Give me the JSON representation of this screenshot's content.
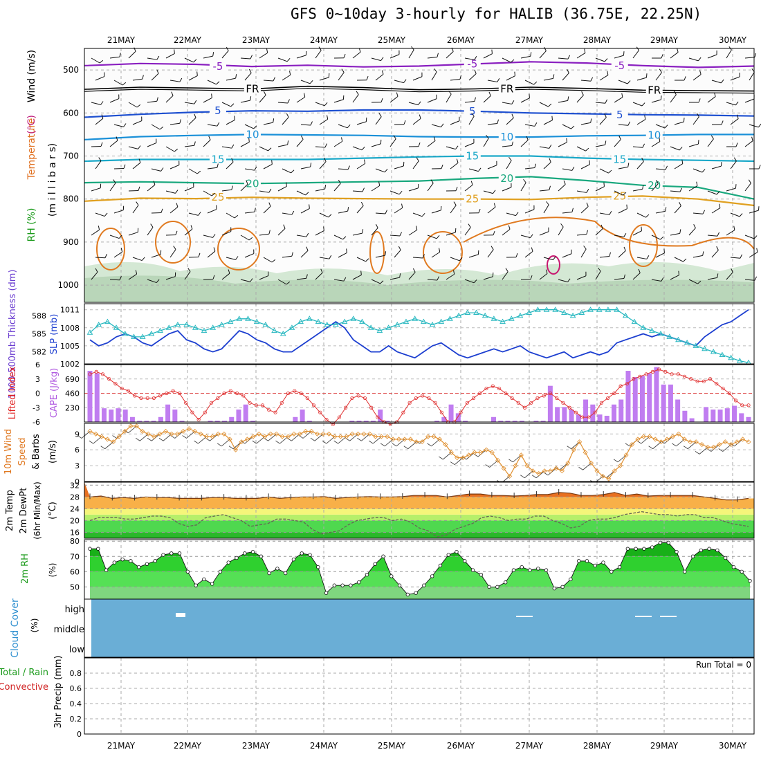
{
  "title": "GFS 0~10day 3-hourly for HALIB (36.75E, 22.25N)",
  "chart_data": {
    "dates": [
      "21MAY",
      "22MAY",
      "23MAY",
      "24MAY",
      "25MAY",
      "26MAY",
      "27MAY",
      "28MAY",
      "29MAY",
      "30MAY"
    ],
    "panel1": {
      "ylabel_parts": [
        {
          "text": "RH (%)",
          "color": "#1a9a1a"
        },
        {
          "text": "Temperature",
          "color": "#e07020"
        },
        {
          "text": "(°C)",
          "color": "#c02080"
        },
        {
          "text": "Wind (m/s)",
          "color": "#000000"
        }
      ],
      "ylabel2": "(m i l l i b a r s)",
      "pressure_ticks": [
        500,
        600,
        700,
        800,
        900,
        1000
      ],
      "isotherms": [
        {
          "label": "-5",
          "color": "#8a1fc0",
          "p": [
            490,
            485,
            487,
            492,
            489,
            493,
            491,
            486,
            481,
            484,
            490,
            494,
            491
          ]
        },
        {
          "label": "FR",
          "color": "#000000",
          "p": [
            545,
            540,
            542,
            544,
            538,
            541,
            546,
            544,
            540,
            543,
            547,
            548,
            549
          ]
        },
        {
          "label": "5",
          "color": "#1d4fd0",
          "p": [
            610,
            603,
            598,
            595,
            596,
            593,
            593,
            596,
            600,
            602,
            604,
            605,
            607
          ]
        },
        {
          "label": "10",
          "color": "#1a90d8",
          "p": [
            662,
            655,
            652,
            650,
            651,
            652,
            655,
            656,
            656,
            653,
            652,
            650,
            650
          ]
        },
        {
          "label": "15",
          "color": "#1aa8c8",
          "p": [
            712,
            708,
            708,
            708,
            708,
            705,
            702,
            700,
            700,
            705,
            708,
            710,
            712
          ]
        },
        {
          "label": "20",
          "color": "#19a87e",
          "p": [
            762,
            760,
            762,
            764,
            762,
            760,
            758,
            752,
            748,
            757,
            768,
            773,
            800
          ]
        },
        {
          "label": "25",
          "color": "#e0a020",
          "p": [
            805,
            798,
            799,
            796,
            798,
            799,
            800,
            800,
            801,
            796,
            793,
            800,
            815
          ]
        }
      ]
    },
    "panel2": {
      "ylabel_left": "1000-500mb Thickness (dm)",
      "ylabel_right": "SLP (mb)",
      "left_ticks": [
        582,
        585,
        588
      ],
      "right_ticks": [
        1002,
        1005,
        1008,
        1011
      ],
      "right_ticks_text": [
        "1002",
        "1005",
        "1008",
        "1011"
      ],
      "slp_mb": [
        1006,
        1005,
        1005.5,
        1006.5,
        1007,
        1006.5,
        1005.5,
        1005,
        1006,
        1007,
        1007.5,
        1006,
        1005.5,
        1004.5,
        1004,
        1004.5,
        1006,
        1007.5,
        1007,
        1006,
        1005.5,
        1004.5,
        1004,
        1004,
        1005,
        1006,
        1007,
        1008,
        1009,
        1008,
        1006,
        1005,
        1004,
        1004,
        1005,
        1004,
        1003.5,
        1003,
        1004,
        1005,
        1005.5,
        1004.5,
        1003.5,
        1003,
        1003.5,
        1004,
        1004.5,
        1004,
        1004.5,
        1005,
        1004,
        1003.5,
        1003,
        1003.5,
        1004,
        1003,
        1003.5,
        1004,
        1003.5,
        1004,
        1005.5,
        1006,
        1006.5,
        1007,
        1006.5,
        1007,
        1006.5,
        1006,
        1005.5,
        1005,
        1006.5,
        1007.5,
        1008.5,
        1009,
        1010,
        1011
      ],
      "thickness_dm": [
        585.2,
        586.5,
        587.0,
        586.0,
        585.0,
        584.5,
        584.5,
        585.0,
        585.5,
        586.0,
        586.5,
        586.5,
        586.0,
        585.5,
        586.0,
        586.5,
        587.0,
        587.5,
        587.5,
        587.0,
        586.5,
        585.5,
        585.0,
        586.0,
        587.0,
        587.5,
        587.0,
        586.5,
        586.5,
        587.0,
        587.5,
        587.0,
        586.0,
        585.5,
        586.0,
        586.5,
        587.0,
        587.5,
        587.0,
        586.5,
        587.0,
        587.5,
        588.0,
        588.5,
        588.5,
        588.0,
        587.5,
        587.0,
        587.5,
        588.0,
        588.5,
        589.0,
        589.0,
        589.0,
        588.5,
        588.0,
        588.5,
        589.0,
        589.0,
        589.0,
        589.0,
        588.0,
        587.0,
        586.0,
        585.5,
        585.0,
        584.5,
        584.0,
        583.5,
        583.0,
        582.5,
        582.0,
        581.5,
        581.0,
        580.5,
        580.2
      ]
    },
    "panel3": {
      "ylabel_left": "Lifted Index",
      "ylabel_right": "CAPE (J/kg)",
      "left_ticks_text": [
        "6",
        "3",
        "0",
        "-3",
        "-6"
      ],
      "right_ticks_text": [
        "230",
        "460",
        "690"
      ],
      "cape_bars": [
        820,
        780,
        220,
        200,
        220,
        200,
        80,
        20,
        20,
        20,
        80,
        280,
        200,
        20,
        0,
        0,
        0,
        20,
        20,
        20,
        80,
        200,
        280,
        20,
        0,
        0,
        0,
        0,
        0,
        80,
        200,
        20,
        0,
        0,
        0,
        0,
        0,
        20,
        20,
        20,
        20,
        200,
        20,
        0,
        0,
        0,
        0,
        0,
        0,
        20,
        80,
        280,
        140,
        20,
        0,
        0,
        0,
        80,
        20,
        20,
        20,
        20,
        0,
        20,
        20,
        580,
        240,
        240,
        200,
        120,
        360,
        280,
        120,
        100,
        280,
        360,
        820,
        720,
        740,
        780,
        880,
        600,
        600,
        360,
        180,
        60,
        0,
        240,
        200,
        200,
        220,
        260,
        140,
        80
      ],
      "lifted_index": [
        -4.0,
        -4.5,
        -4.0,
        -3.0,
        -2.0,
        -1.0,
        -0.5,
        0.5,
        1.0,
        1.0,
        1.0,
        0.5,
        0.0,
        -0.5,
        0.0,
        2.0,
        4.0,
        5.5,
        4.0,
        2.0,
        1.0,
        0.0,
        -0.5,
        0.0,
        0.5,
        2.0,
        2.5,
        2.5,
        3.5,
        4.0,
        2.0,
        0.0,
        -0.5,
        0.0,
        1.0,
        2.5,
        4.0,
        5.5,
        6.5,
        5.0,
        3.0,
        1.0,
        0.5,
        1.0,
        3.0,
        5.0,
        6.0,
        6.5,
        6.0,
        4.0,
        2.0,
        1.0,
        0.5,
        1.0,
        2.0,
        4.0,
        6.0,
        6.0,
        4.0,
        2.0,
        1.0,
        0.0,
        -1.0,
        -1.5,
        -1.0,
        0.0,
        1.0,
        2.0,
        3.0,
        2.0,
        1.0,
        0.5,
        0.0,
        1.0,
        2.0,
        3.0,
        4.0,
        5.0,
        5.0,
        4.0,
        2.0,
        1.0,
        0.0,
        -1.5,
        -2.0,
        -3.0,
        -3.5,
        -4.0,
        -4.5,
        -5.0,
        -4.5,
        -4.0,
        -4.0,
        -3.5,
        -3.0,
        -2.5,
        -2.5,
        -3.0,
        -2.0,
        -1.0,
        0.0,
        1.5,
        2.5,
        2.5
      ]
    },
    "panel4": {
      "ylabel": "10m Wind Speed & Barbs (m/s)",
      "yticks": [
        0,
        3,
        6,
        9
      ],
      "speed": [
        9.5,
        9.0,
        8.5,
        8.0,
        7.5,
        8.5,
        9.5,
        10.5,
        10.5,
        9.5,
        9.0,
        8.5,
        9.0,
        9.5,
        9.0,
        9.0,
        9.5,
        10.0,
        9.5,
        9.0,
        8.5,
        8.5,
        9.0,
        9.0,
        8.0,
        6.0,
        7.5,
        8.0,
        8.5,
        9.0,
        8.5,
        9.0,
        9.0,
        8.5,
        8.5,
        9.0,
        9.0,
        9.5,
        9.5,
        9.0,
        9.0,
        9.0,
        8.5,
        8.5,
        8.5,
        9.0,
        9.0,
        9.0,
        9.0,
        8.5,
        8.5,
        8.5,
        8.0,
        8.0,
        8.0,
        8.0,
        7.5,
        7.5,
        8.5,
        8.5,
        8.0,
        7.0,
        5.5,
        4.5,
        4.5,
        5.0,
        5.5,
        5.5,
        6.0,
        5.5,
        4.0,
        2.5,
        1.0,
        3.0,
        5.0,
        3.0,
        2.0,
        1.5,
        2.0,
        2.0,
        2.5,
        2.0,
        3.5,
        6.0,
        7.5,
        5.5,
        3.5,
        2.0,
        1.0,
        0.5,
        2.0,
        3.0,
        5.0,
        7.0,
        8.0,
        8.5,
        8.5,
        8.0,
        7.5,
        8.0,
        8.5,
        9.0,
        8.0,
        7.5,
        7.5,
        7.0,
        6.5,
        6.5,
        7.0,
        7.5,
        7.0,
        7.5,
        8.0,
        7.5
      ]
    },
    "panel5": {
      "ylabel": "2m Temp 2m DewPt (6hr Min/Max) (°C)",
      "yticks": [
        16,
        20,
        24,
        28,
        32
      ],
      "temp": [
        28,
        28.3,
        27.5,
        27.8,
        27.5,
        28,
        27.8,
        27.8,
        27.5,
        27.5,
        27.5,
        27.8,
        27.8,
        27.5,
        27.5,
        27.5,
        28,
        27.5,
        27.8,
        28,
        28,
        28.1,
        27.5,
        27.8,
        28,
        28.1,
        28,
        28,
        28.1,
        28.5,
        28.5,
        28.5,
        28,
        28.5,
        29,
        29,
        28.5,
        28.5,
        28.3,
        28.5,
        28.8,
        28.8,
        29.5,
        29.3,
        28.5,
        28.5,
        28.8,
        29.5,
        28.5,
        29,
        28.3,
        28.5,
        28.5,
        28.5,
        28.5,
        28,
        27.5,
        27,
        27,
        27.5
      ],
      "dewpt": [
        20,
        21,
        21,
        21,
        20.5,
        20.5,
        21,
        21.5,
        21.5,
        21,
        19,
        18,
        18.5,
        21,
        21.5,
        22,
        21,
        20,
        18,
        18.5,
        19,
        20.5,
        20.5,
        20,
        19.5,
        17,
        15.5,
        16,
        16.5,
        18.5,
        20,
        20.5,
        21,
        21,
        20,
        20.5,
        19.5,
        17.5,
        16.5,
        14.5,
        15,
        17,
        18,
        19,
        21,
        21.5,
        21,
        20,
        20.5,
        20.5,
        21.5,
        21.5,
        20,
        19,
        17.5,
        18,
        20,
        20.5,
        20.5,
        21,
        22,
        22.5,
        23,
        22.5,
        22,
        22,
        21.5,
        22,
        22,
        21,
        21,
        20,
        19,
        18.5,
        18
      ]
    },
    "panel6": {
      "ylabel": "2m RH",
      "units": "(%)",
      "yticks": [
        50,
        60,
        70,
        80
      ],
      "rh": [
        75,
        75,
        61,
        66,
        68,
        67,
        63,
        65,
        67,
        71,
        72,
        72,
        60,
        51,
        55,
        52,
        60,
        66,
        69,
        72,
        73,
        70,
        59,
        62,
        59,
        68,
        72,
        71,
        63,
        46,
        51,
        51,
        51,
        53,
        58,
        65,
        70,
        57,
        51,
        45,
        46,
        51,
        57,
        64,
        71,
        73,
        67,
        61,
        58,
        50,
        50,
        53,
        61,
        63,
        61,
        62,
        61,
        49,
        50,
        55,
        67,
        67,
        64,
        66,
        60,
        63,
        75,
        75,
        75,
        76,
        79,
        79,
        73,
        60,
        70,
        74,
        75,
        74,
        69,
        63,
        60,
        54
      ]
    },
    "panel7": {
      "ylabel": "Cloud Cover",
      "units": "(%)",
      "levels": [
        "high",
        "middle",
        "low"
      ]
    },
    "panel8": {
      "ylabel_parts": [
        {
          "text": "Total / Rain",
          "color": "#1a9a1a"
        },
        {
          "text": "Convective",
          "color": "#d02020"
        },
        {
          "text": "3hr Precip (mm)",
          "color": "#000000"
        }
      ],
      "yticks": [
        0,
        0.2,
        0.4,
        0.6,
        0.8
      ],
      "yticks_text": [
        "0",
        "0.2",
        "0.4",
        "0.6",
        "0.8"
      ],
      "run_total": "Run Total = 0"
    }
  }
}
